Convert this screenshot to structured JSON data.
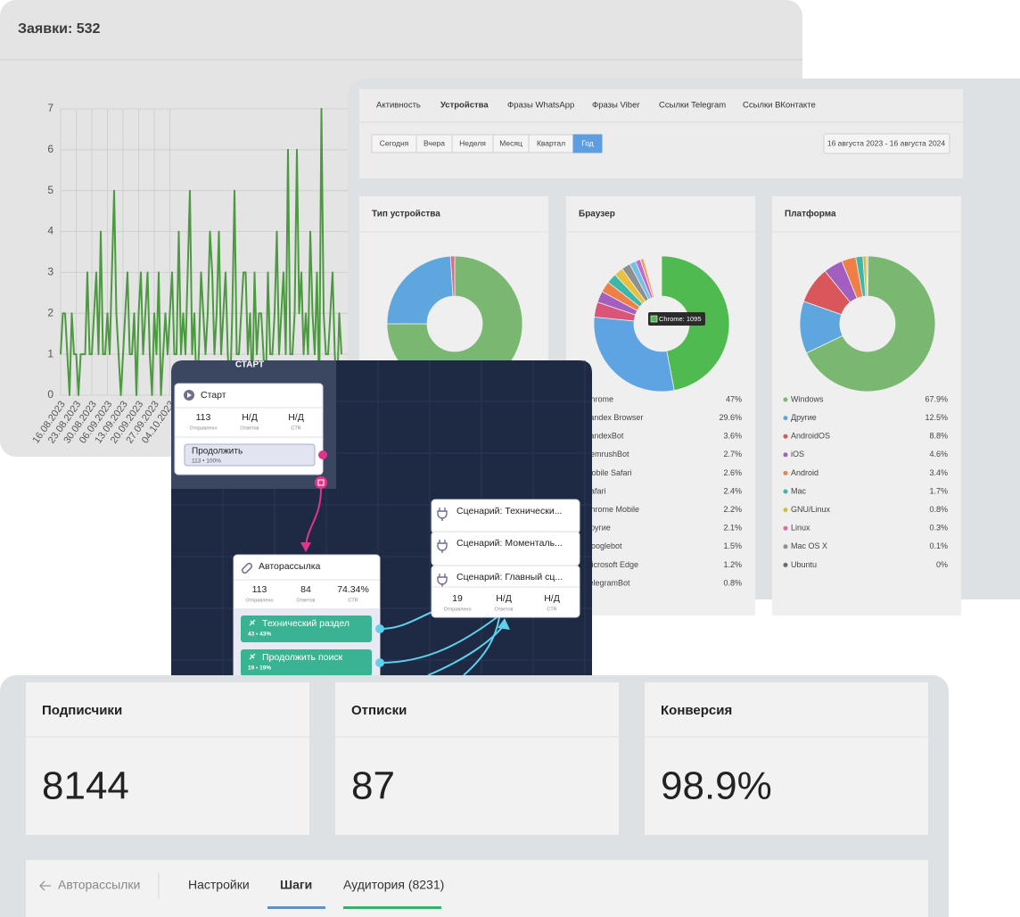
{
  "requests_panel": {
    "title": "Заявки: 532",
    "chart": {
      "type": "line",
      "categories": [
        "16.08.2023",
        null,
        null,
        null,
        null,
        null,
        null,
        "23.08.2023",
        null,
        null,
        null,
        null,
        null,
        null,
        "30.08.2023",
        null,
        null,
        null,
        null,
        null,
        null,
        "06.09.2023",
        null,
        null,
        null,
        null,
        null,
        null,
        "13.09.2023",
        null,
        null,
        null,
        null,
        null,
        null,
        "20.09.2023",
        null,
        null,
        null,
        null,
        null,
        null,
        "27.09.2023",
        null,
        null,
        null,
        null,
        null,
        null,
        "04.10.2023",
        null,
        null,
        null,
        null,
        null,
        null,
        null,
        null,
        null,
        null,
        null,
        null,
        null,
        null,
        null,
        null,
        null,
        null,
        null,
        null,
        null,
        null,
        null,
        null,
        null,
        null,
        null,
        null,
        null,
        null,
        null,
        null,
        null,
        null,
        null,
        null,
        null,
        null,
        null,
        null,
        null,
        null,
        null,
        null,
        null,
        null,
        null,
        null,
        null,
        null,
        null,
        null,
        null,
        null,
        null,
        null,
        null,
        null,
        null,
        null,
        null,
        null,
        null,
        null,
        null,
        null,
        null,
        null,
        null,
        null,
        null,
        null,
        null,
        null,
        null,
        null,
        null
      ],
      "values": [
        1,
        2,
        2,
        1,
        0,
        2,
        1,
        1,
        0,
        1,
        1,
        1,
        3,
        1,
        1,
        2,
        3,
        1,
        4,
        1,
        1,
        2,
        1,
        3,
        5,
        2,
        1,
        0,
        1,
        2,
        3,
        1,
        1,
        2,
        0,
        2,
        3,
        1,
        2,
        3,
        1,
        0,
        2,
        1,
        3,
        0,
        1,
        2,
        1,
        2,
        3,
        1,
        1,
        4,
        1,
        2,
        1,
        3,
        5,
        1,
        2,
        0,
        1,
        3,
        2,
        1,
        2,
        4,
        3,
        1,
        2,
        4,
        1,
        2,
        3,
        1,
        0,
        2,
        5,
        1,
        1,
        2,
        3,
        3,
        1,
        2,
        0,
        3,
        1,
        2,
        2,
        1,
        0,
        3,
        1,
        1,
        2,
        4,
        1,
        2,
        3,
        1,
        6,
        1,
        1,
        2,
        6,
        2,
        3,
        1,
        2,
        1,
        4,
        2,
        1,
        3,
        0,
        7,
        2,
        1,
        1,
        2,
        3,
        1,
        0,
        2,
        1
      ],
      "color": "#4c9a3f",
      "ylim": [
        0,
        7
      ],
      "yticks": [
        0,
        1,
        2,
        3,
        4,
        5,
        6,
        7
      ],
      "grid": true
    }
  },
  "devices_panel": {
    "tabs": [
      "Активность",
      "Устройства",
      "Фразы WhatsApp",
      "Фразы Viber",
      "Ссылки Telegram",
      "Ссылки ВКонтакте"
    ],
    "active_tab": "Устройства",
    "periods": [
      "Сегодня",
      "Вчера",
      "Неделя",
      "Месяц",
      "Квартал",
      "Год"
    ],
    "active_period": "Год",
    "date_range": "16 августа 2023 - 16 августа 2024",
    "cards": [
      {
        "title": "Тип устройства",
        "chart": {
          "type": "donut",
          "values": [
            75,
            24,
            1
          ],
          "colors": [
            "#7ab872",
            "#5ea6de",
            "#e06a8c"
          ]
        }
      },
      {
        "title": "Браузер",
        "chart": {
          "type": "donut",
          "categories": [
            "Chrome",
            "Yandex Browser",
            "YandexBot",
            "SemrushBot",
            "Mobile Safari",
            "Safari",
            "Chrome Mobile",
            "Другие",
            "Googlebot",
            "Microsoft Edge",
            "TelegramBot"
          ],
          "values": [
            47,
            29.6,
            3.6,
            2.7,
            2.6,
            2.4,
            2.2,
            2.1,
            1.5,
            1.2,
            0.8
          ],
          "value_labels": [
            "47%",
            "29.6%",
            "3.6%",
            "2.7%",
            "2.6%",
            "2.4%",
            "2.2%",
            "2.1%",
            "1.5%",
            "1.2%",
            "0.8%"
          ],
          "colors": [
            "#4fba4f",
            "#5ea3e2",
            "#d9567a",
            "#a35fc0",
            "#ef7f45",
            "#3db7a8",
            "#e8c03c",
            "#8f8f8f",
            "#6fc1e8",
            "#c06bd0",
            "#f4a261"
          ],
          "tooltip": "Chrome: 1095"
        }
      },
      {
        "title": "Платформа",
        "chart": {
          "type": "donut",
          "categories": [
            "Windows",
            "Другие",
            "AndroidOS",
            "iOS",
            "Android",
            "Mac",
            "GNU/Linux",
            "Linux",
            "Mac OS X",
            "Ubuntu"
          ],
          "values": [
            67.9,
            12.5,
            8.8,
            4.6,
            3.4,
            1.7,
            0.8,
            0.3,
            0.1,
            0
          ],
          "value_labels": [
            "67.9%",
            "12.5%",
            "8.8%",
            "4.6%",
            "3.4%",
            "1.7%",
            "0.8%",
            "0.3%",
            "0.1%",
            "0%"
          ],
          "colors": [
            "#7ab872",
            "#5ea6de",
            "#d9565a",
            "#a35fc0",
            "#ef7f45",
            "#3db7a8",
            "#c9c23c",
            "#d96aa8",
            "#8f8f8f",
            "#6a6a6a"
          ]
        }
      }
    ]
  },
  "flow": {
    "start_group": "СТАРТ",
    "nodes": [
      {
        "title": "Старт",
        "stats": [
          {
            "value": "113",
            "label": "Отправлено"
          },
          {
            "value": "Н/Д",
            "label": "Ответов"
          },
          {
            "value": "Н/Д",
            "label": "CTR"
          }
        ],
        "buttons": [
          {
            "label": "Продолжить",
            "stats": "113 • 100%"
          }
        ]
      },
      {
        "title": "Авторассылка",
        "stats": [
          {
            "value": "113",
            "label": "Отправлено"
          },
          {
            "value": "84",
            "label": "Ответов"
          },
          {
            "value": "74.34%",
            "label": "CTR"
          }
        ],
        "buttons": [
          {
            "label": "Технический раздел",
            "stats": "43 • 43%"
          },
          {
            "label": "Продолжить поиск",
            "stats": "19 • 19%"
          }
        ]
      },
      {
        "title": "Сценарий: Технически..."
      },
      {
        "title": "Сценарий: Моменталь..."
      },
      {
        "title": "Сценарий: Главный сц...",
        "stats": [
          {
            "value": "19",
            "label": "Отправлено"
          },
          {
            "value": "Н/Д",
            "label": "Ответов"
          },
          {
            "value": "Н/Д",
            "label": "CTR"
          }
        ]
      }
    ]
  },
  "summary": {
    "cards": [
      {
        "title": "Подписчики",
        "value": "8144"
      },
      {
        "title": "Отписки",
        "value": "87"
      },
      {
        "title": "Конверсия",
        "value": "98.9%"
      }
    ],
    "back": "Авторассылки",
    "tabs": [
      "Настройки",
      "Шаги",
      "Аудитория (8231)"
    ]
  }
}
